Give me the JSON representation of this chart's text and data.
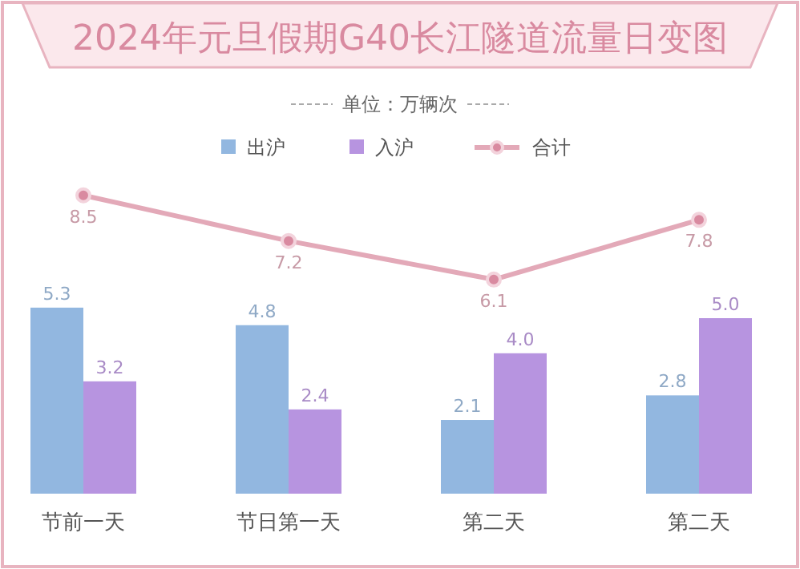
{
  "chart_data": {
    "type": "bar",
    "title": "2024年元旦假期G40长江隧道流量日变图",
    "subtitle": "单位：万辆次",
    "categories": [
      "节前一天",
      "节日第一天",
      "第二天",
      "第二天"
    ],
    "series": [
      {
        "name": "出沪",
        "color": "#92b7e0",
        "values": [
          5.3,
          4.8,
          2.1,
          2.8
        ]
      },
      {
        "name": "入沪",
        "color": "#b794e0",
        "values": [
          3.2,
          2.4,
          4.0,
          5.0
        ],
        "value_labels": [
          "3.2",
          "2.4",
          "4.0",
          "5.0"
        ]
      },
      {
        "name": "合计",
        "type": "line",
        "color": "#e3a9b8",
        "values": [
          8.5,
          7.2,
          6.1,
          7.8
        ]
      }
    ],
    "tick_labels": "x",
    "data_labels": true,
    "legend": "top",
    "marker": "circle",
    "grid": false
  }
}
